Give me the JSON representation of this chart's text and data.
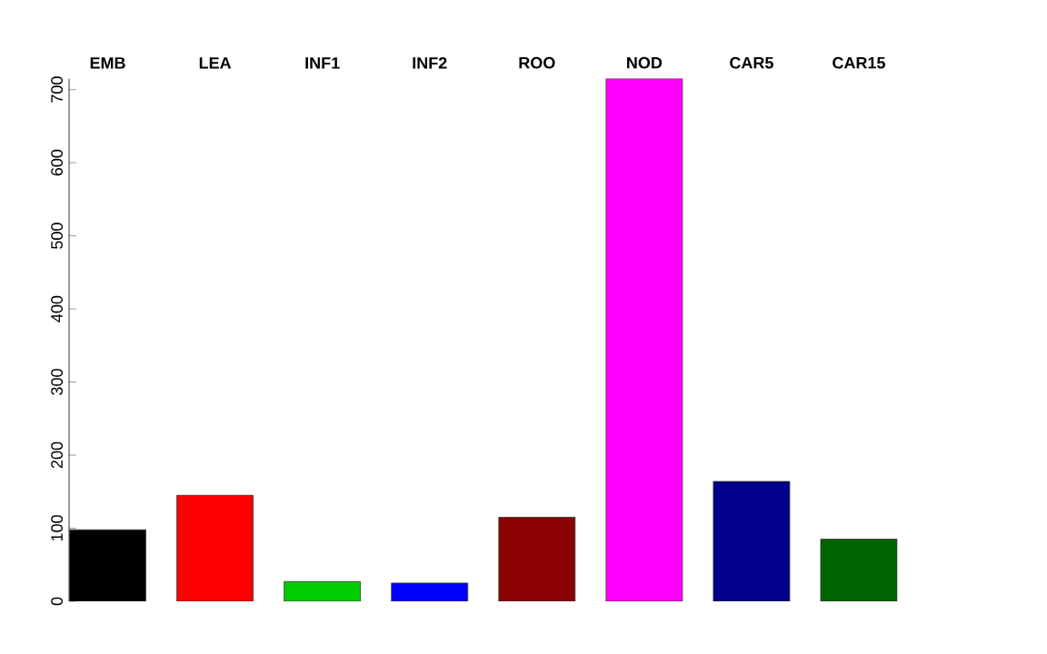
{
  "chart_data": {
    "type": "bar",
    "categories": [
      "EMB",
      "LEA",
      "INF1",
      "INF2",
      "ROO",
      "NOD",
      "CAR5",
      "CAR15"
    ],
    "values": [
      98,
      145,
      27,
      25,
      115,
      715,
      164,
      85
    ],
    "colors": [
      "#000000",
      "#ff0000",
      "#00cd00",
      "#0000ff",
      "#8b0000",
      "#ff00ff",
      "#00008b",
      "#006400"
    ],
    "ylim": [
      0,
      715
    ],
    "yticks": [
      0,
      100,
      200,
      300,
      400,
      500,
      600,
      700
    ],
    "grid": false
  }
}
